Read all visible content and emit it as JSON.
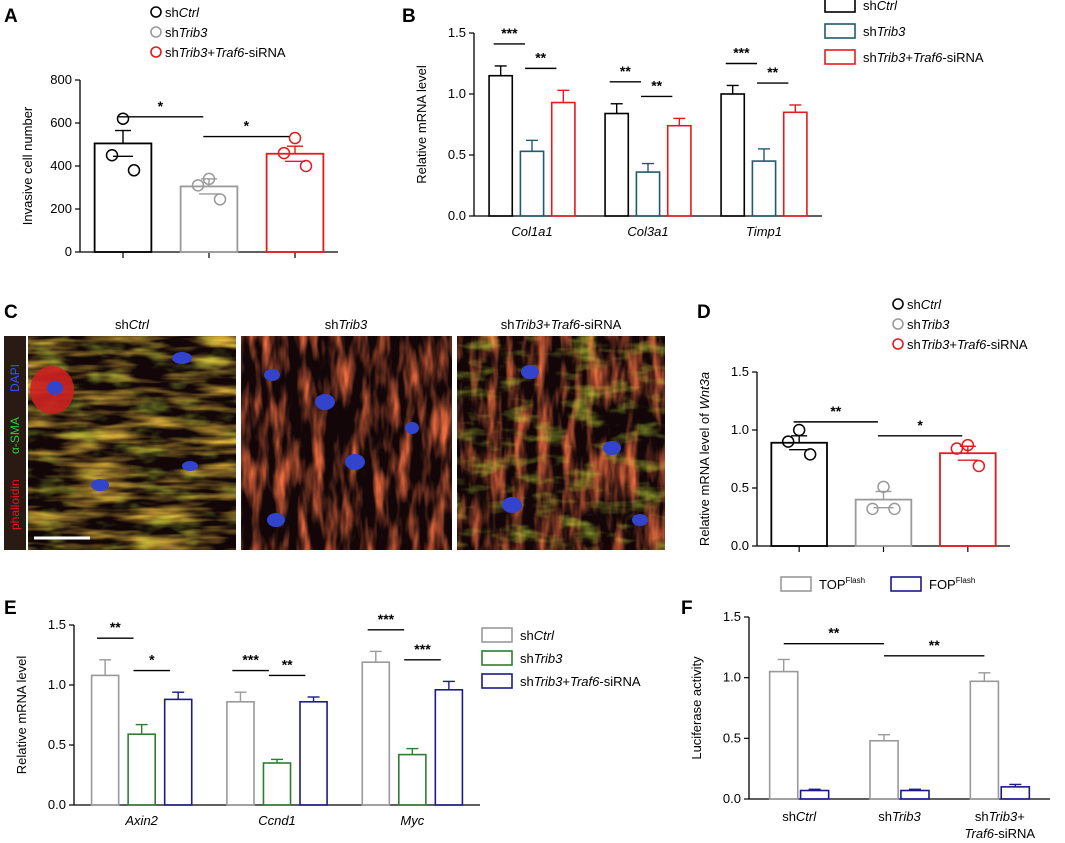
{
  "colors": {
    "black": "#000000",
    "gray": "#9a9a9a",
    "red": "#e41a1c",
    "teal": "#1f5a6e",
    "green": "#2e7d32",
    "navy": "#1a1a8c"
  },
  "panels": {
    "A": "A",
    "B": "B",
    "C": "C",
    "D": "D",
    "E": "E",
    "F": "F"
  },
  "panel_c": {
    "titles": [
      {
        "prefix": "sh",
        "italic": "Ctrl",
        "suffix": ""
      },
      {
        "prefix": "sh",
        "italic": "Trib3",
        "suffix": ""
      },
      {
        "prefix": "sh",
        "italic": "Trib3",
        "mid": "+",
        "italic2": "Traf6",
        "suffix": "-siRNA"
      }
    ],
    "stain_labels": {
      "phalloidin": "phalloidin",
      "asma": "α-SMA",
      "dapi": "DAPI"
    }
  },
  "chart_data": [
    {
      "id": "A",
      "type": "bar",
      "legend": [
        {
          "prefix": "sh",
          "italic": "Ctrl",
          "color": "#000000"
        },
        {
          "prefix": "sh",
          "italic": "Trib3",
          "color": "#9a9a9a"
        },
        {
          "prefix": "sh",
          "italic": "Trib3",
          "mid": "+",
          "italic2": "Traf6",
          "suffix": "-siRNA",
          "color": "#e41a1c"
        }
      ],
      "ylabel": "Invasive cell number",
      "ylim": [
        0,
        800
      ],
      "yticks": [
        "0",
        "200",
        "400",
        "600",
        "800"
      ],
      "groups": [
        {
          "name": "shCtrl",
          "value": 505,
          "err": 60,
          "color": "#000000",
          "points": [
            620,
            450,
            380
          ]
        },
        {
          "name": "shTrib3",
          "value": 305,
          "err": 35,
          "color": "#9a9a9a",
          "points": [
            340,
            310,
            245
          ]
        },
        {
          "name": "shTrib3+Traf6-siRNA",
          "value": 457,
          "err": 35,
          "color": "#e41a1c",
          "points": [
            530,
            460,
            400
          ]
        }
      ],
      "significance": [
        {
          "from": 0,
          "to": 1,
          "label": "*"
        },
        {
          "from": 1,
          "to": 2,
          "label": "*"
        }
      ]
    },
    {
      "id": "B",
      "type": "bar",
      "legend": [
        {
          "prefix": "sh",
          "italic": "Ctrl",
          "color": "#000000"
        },
        {
          "prefix": "sh",
          "italic": "Trib3",
          "color": "#1f5a6e"
        },
        {
          "prefix": "sh",
          "italic": "Trib3",
          "mid": "+",
          "italic2": "Traf6",
          "suffix": "-siRNA",
          "color": "#e41a1c"
        }
      ],
      "ylabel": "Relative mRNA level",
      "ylim": [
        0,
        1.5
      ],
      "yticks": [
        "0.0",
        "0.5",
        "1.0",
        "1.5"
      ],
      "categories": [
        "Col1a1",
        "Col3a1",
        "Timp1"
      ],
      "series": [
        {
          "values": [
            1.15,
            0.84,
            1.0
          ],
          "errors": [
            0.08,
            0.08,
            0.07
          ],
          "color": "#000000"
        },
        {
          "values": [
            0.53,
            0.36,
            0.45
          ],
          "errors": [
            0.09,
            0.07,
            0.1
          ],
          "color": "#1f5a6e"
        },
        {
          "values": [
            0.93,
            0.74,
            0.85
          ],
          "errors": [
            0.1,
            0.06,
            0.06
          ],
          "color": "#e41a1c"
        }
      ],
      "significance": [
        {
          "cat": 0,
          "from": 0,
          "to": 1,
          "label": "***"
        },
        {
          "cat": 0,
          "from": 1,
          "to": 2,
          "label": "**"
        },
        {
          "cat": 1,
          "from": 0,
          "to": 1,
          "label": "**"
        },
        {
          "cat": 1,
          "from": 1,
          "to": 2,
          "label": "**"
        },
        {
          "cat": 2,
          "from": 0,
          "to": 1,
          "label": "***"
        },
        {
          "cat": 2,
          "from": 1,
          "to": 2,
          "label": "**"
        }
      ]
    },
    {
      "id": "D",
      "type": "bar",
      "legend": [
        {
          "prefix": "sh",
          "italic": "Ctrl",
          "color": "#000000"
        },
        {
          "prefix": "sh",
          "italic": "Trib3",
          "color": "#9a9a9a"
        },
        {
          "prefix": "sh",
          "italic": "Trib3",
          "mid": "+",
          "italic2": "Traf6",
          "suffix": "-siRNA",
          "color": "#e41a1c"
        }
      ],
      "ylabel": "Relative mRNA level of",
      "ylabel_italic": "Wnt3a",
      "ylim": [
        0,
        1.5
      ],
      "yticks": [
        "0.0",
        "0.5",
        "1.0",
        "1.5"
      ],
      "groups": [
        {
          "name": "shCtrl",
          "value": 0.89,
          "err": 0.06,
          "color": "#000000",
          "points": [
            1.0,
            0.9,
            0.79
          ]
        },
        {
          "name": "shTrib3",
          "value": 0.4,
          "err": 0.07,
          "color": "#9a9a9a",
          "points": [
            0.51,
            0.32,
            0.32
          ]
        },
        {
          "name": "shTrib3+Traf6-siRNA",
          "value": 0.8,
          "err": 0.06,
          "color": "#e41a1c",
          "points": [
            0.87,
            0.84,
            0.69
          ]
        }
      ],
      "significance": [
        {
          "from": 0,
          "to": 1,
          "label": "**"
        },
        {
          "from": 1,
          "to": 2,
          "label": "*"
        }
      ]
    },
    {
      "id": "E",
      "type": "bar",
      "legend": [
        {
          "prefix": "sh",
          "italic": "Ctrl",
          "color": "#9a9a9a"
        },
        {
          "prefix": "sh",
          "italic": "Trib3",
          "color": "#2e7d32"
        },
        {
          "prefix": "sh",
          "italic": "Trib3",
          "mid": "+",
          "italic2": "Traf6",
          "suffix": "-siRNA",
          "color": "#1a1a8c"
        }
      ],
      "ylabel": "Relative mRNA level",
      "ylim": [
        0,
        1.5
      ],
      "yticks": [
        "0.0",
        "0.5",
        "1.0",
        "1.5"
      ],
      "categories": [
        "Axin2",
        "Ccnd1",
        "Myc"
      ],
      "series": [
        {
          "values": [
            1.08,
            0.86,
            1.19
          ],
          "errors": [
            0.13,
            0.08,
            0.09
          ],
          "color": "#9a9a9a"
        },
        {
          "values": [
            0.59,
            0.35,
            0.42
          ],
          "errors": [
            0.08,
            0.03,
            0.05
          ],
          "color": "#2e7d32"
        },
        {
          "values": [
            0.88,
            0.86,
            0.96
          ],
          "errors": [
            0.06,
            0.04,
            0.07
          ],
          "color": "#1a1a8c"
        }
      ],
      "significance": [
        {
          "cat": 0,
          "from": 0,
          "to": 1,
          "label": "**"
        },
        {
          "cat": 0,
          "from": 1,
          "to": 2,
          "label": "*"
        },
        {
          "cat": 1,
          "from": 0,
          "to": 1,
          "label": "***"
        },
        {
          "cat": 1,
          "from": 1,
          "to": 2,
          "label": "**"
        },
        {
          "cat": 2,
          "from": 0,
          "to": 1,
          "label": "***"
        },
        {
          "cat": 2,
          "from": 1,
          "to": 2,
          "label": "***"
        }
      ]
    },
    {
      "id": "F",
      "type": "bar",
      "legend": [
        {
          "text": "TOP",
          "sup": "Flash",
          "color": "#9a9a9a"
        },
        {
          "text": "FOP",
          "sup": "Flash",
          "color": "#1a1a8c"
        }
      ],
      "ylabel": "Luciferase activity",
      "ylim": [
        0,
        1.5
      ],
      "yticks": [
        "0.0",
        "0.5",
        "1.0",
        "1.5"
      ],
      "categories": [
        {
          "lines": [
            {
              "prefix": "sh",
              "italic": "Ctrl"
            }
          ]
        },
        {
          "lines": [
            {
              "prefix": "sh",
              "italic": "Trib3"
            }
          ]
        },
        {
          "lines": [
            {
              "prefix": "sh",
              "italic": "Trib3",
              "suffix": "+"
            },
            {
              "italic": "Traf6",
              "suffix": "-siRNA"
            }
          ]
        }
      ],
      "series": [
        {
          "name": "TOPFlash",
          "values": [
            1.05,
            0.48,
            0.97
          ],
          "errors": [
            0.1,
            0.05,
            0.07
          ],
          "color": "#9a9a9a"
        },
        {
          "name": "FOPFlash",
          "values": [
            0.07,
            0.07,
            0.1
          ],
          "errors": [
            0.01,
            0.01,
            0.02
          ],
          "color": "#1a1a8c"
        }
      ],
      "significance": [
        {
          "from": 0,
          "to": 1,
          "label": "**",
          "level": 1.28
        },
        {
          "from": 1,
          "to": 2,
          "label": "**",
          "level": 1.18
        }
      ]
    }
  ]
}
